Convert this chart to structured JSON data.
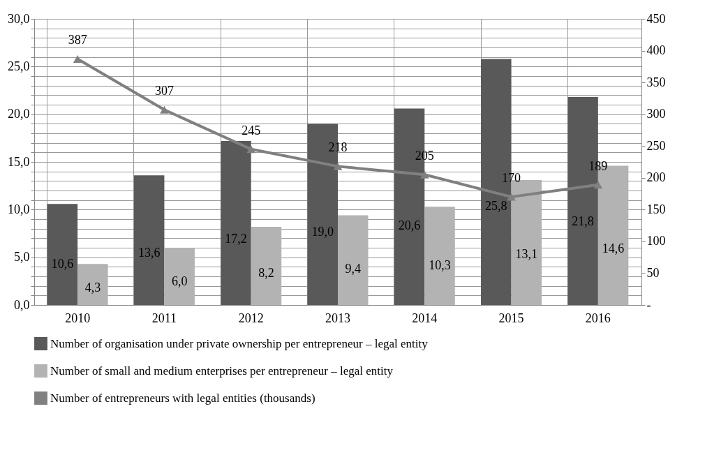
{
  "chart_data": {
    "type": "bar",
    "categories": [
      "2010",
      "2011",
      "2012",
      "2013",
      "2014",
      "2015",
      "2016"
    ],
    "series": [
      {
        "name": "Number of organisation under private ownership per entrepreneur – legal entity",
        "color": "#595959",
        "values": [
          10.6,
          13.6,
          17.2,
          19.0,
          20.6,
          25.8,
          21.8
        ],
        "value_labels": [
          "10,6",
          "13,6",
          "17,2",
          "19,0",
          "20,6",
          "25,8",
          "21,8"
        ]
      },
      {
        "name": "Number of small and medium enterprises per entrepreneur – legal entity",
        "color": "#b3b3b3",
        "values": [
          4.3,
          6.0,
          8.2,
          9.4,
          10.3,
          13.1,
          14.6
        ],
        "value_labels": [
          "4,3",
          "6,0",
          "8,2",
          "9,4",
          "10,3",
          "13,1",
          "14,6"
        ]
      },
      {
        "name": "Number of entrepreneurs with legal entities (thousands)",
        "type": "line",
        "axis": "y2",
        "color": "#808080",
        "marker": "triangle",
        "values": [
          387,
          307,
          245,
          218,
          205,
          170,
          189
        ],
        "value_labels": [
          "387",
          "307",
          "245",
          "218",
          "205",
          "170",
          "189"
        ]
      }
    ],
    "ylim": [
      0,
      30
    ],
    "yticks": [
      {
        "value": 0,
        "label": "0,0"
      },
      {
        "value": 1,
        "label": null
      },
      {
        "value": 2,
        "label": null
      },
      {
        "value": 3,
        "label": null
      },
      {
        "value": 4,
        "label": null
      },
      {
        "value": 5,
        "label": "5,0"
      },
      {
        "value": 6,
        "label": null
      },
      {
        "value": 7,
        "label": null
      },
      {
        "value": 8,
        "label": null
      },
      {
        "value": 9,
        "label": null
      },
      {
        "value": 10,
        "label": "10,0"
      },
      {
        "value": 11,
        "label": null
      },
      {
        "value": 12,
        "label": null
      },
      {
        "value": 13,
        "label": null
      },
      {
        "value": 14,
        "label": null
      },
      {
        "value": 15,
        "label": "15,0"
      },
      {
        "value": 16,
        "label": null
      },
      {
        "value": 17,
        "label": null
      },
      {
        "value": 18,
        "label": null
      },
      {
        "value": 19,
        "label": null
      },
      {
        "value": 20,
        "label": "20,0"
      },
      {
        "value": 21,
        "label": null
      },
      {
        "value": 22,
        "label": null
      },
      {
        "value": 23,
        "label": null
      },
      {
        "value": 24,
        "label": null
      },
      {
        "value": 25,
        "label": "25,0"
      },
      {
        "value": 26,
        "label": null
      },
      {
        "value": 27,
        "label": null
      },
      {
        "value": 28,
        "label": null
      },
      {
        "value": 29,
        "label": null
      },
      {
        "value": 30,
        "label": "30,0"
      }
    ],
    "y2lim": [
      0,
      450
    ],
    "y2ticks": [
      {
        "value": 0,
        "label": "-"
      },
      50,
      100,
      150,
      200,
      250,
      300,
      350,
      400,
      450
    ],
    "grid": true,
    "legend": "bottom"
  }
}
